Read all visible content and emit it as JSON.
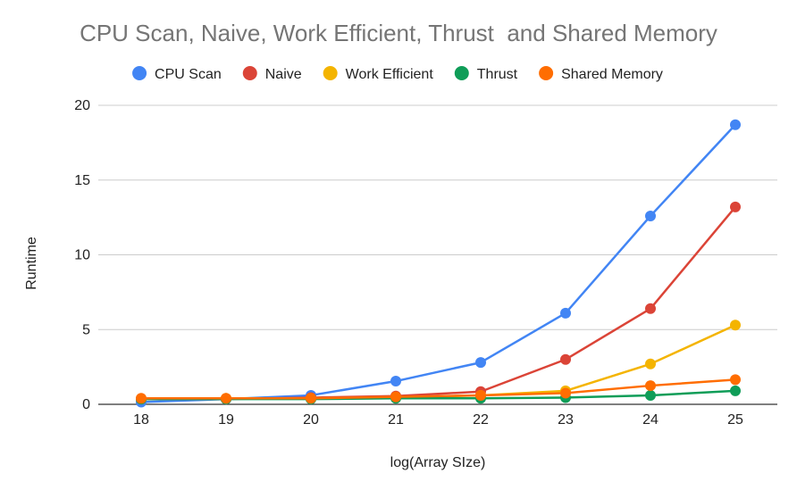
{
  "chart_data": {
    "type": "line",
    "title": "CPU Scan, Naive, Work Efficient, Thrust  and Shared Memory",
    "xlabel": "log(Array SIze)",
    "ylabel": "Runtime",
    "categories": [
      "18",
      "19",
      "20",
      "21",
      "22",
      "23",
      "24",
      "25"
    ],
    "ylim": [
      0,
      20
    ],
    "yticks": [
      0,
      5,
      10,
      15,
      20
    ],
    "grid": true,
    "legend_position": "top",
    "series": [
      {
        "name": "CPU Scan",
        "color": "#4285f4",
        "values": [
          0.15,
          0.35,
          0.6,
          1.55,
          2.8,
          6.1,
          12.6,
          18.7
        ]
      },
      {
        "name": "Naive",
        "color": "#db4437",
        "values": [
          0.35,
          0.35,
          0.45,
          0.55,
          0.85,
          3.0,
          6.4,
          13.2
        ]
      },
      {
        "name": "Work Efficient",
        "color": "#f4b400",
        "values": [
          0.35,
          0.4,
          0.4,
          0.45,
          0.6,
          0.9,
          2.7,
          5.3
        ]
      },
      {
        "name": "Thrust",
        "color": "#0f9d58",
        "values": [
          0.35,
          0.35,
          0.35,
          0.4,
          0.4,
          0.45,
          0.6,
          0.9
        ]
      },
      {
        "name": "Shared Memory",
        "color": "#ff6d01",
        "values": [
          0.4,
          0.4,
          0.4,
          0.5,
          0.6,
          0.75,
          1.25,
          1.65
        ]
      }
    ]
  }
}
